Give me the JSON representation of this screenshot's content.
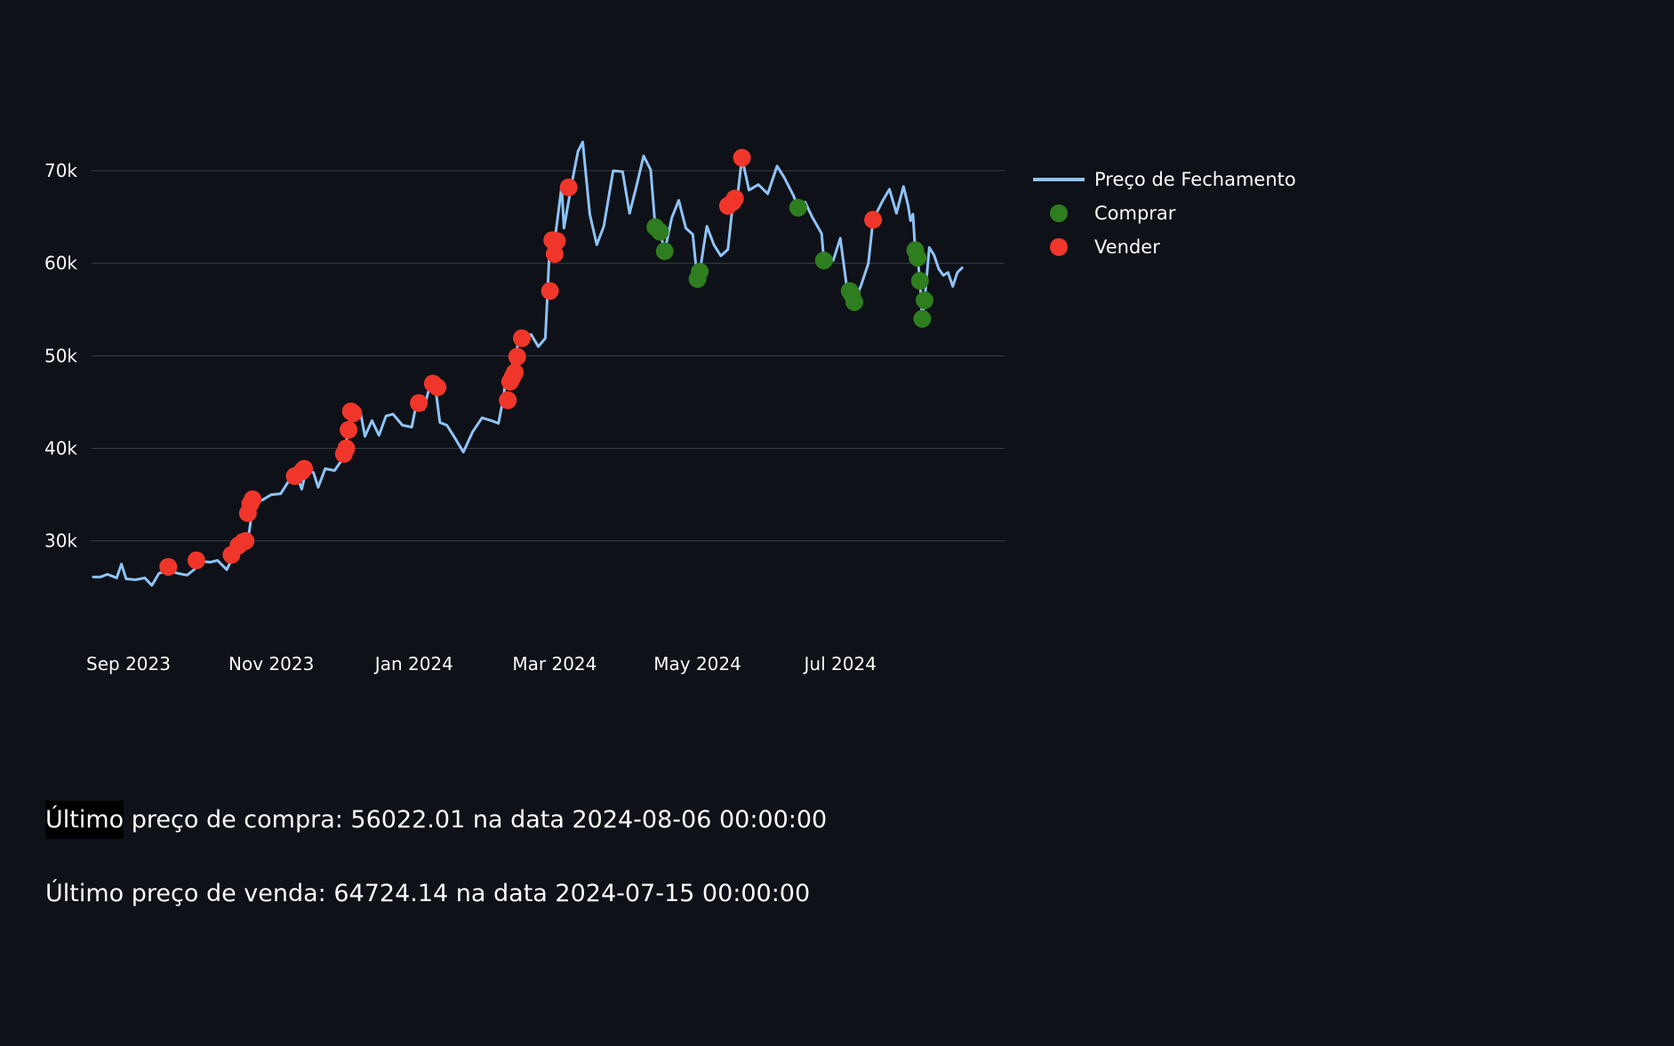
{
  "chart_data": {
    "type": "line",
    "x_axis": {
      "tick_labels": [
        "Sep 2023",
        "Nov 2023",
        "Jan 2024",
        "Mar 2024",
        "May 2024",
        "Jul 2024"
      ],
      "tick_dates": [
        "2023-09-01",
        "2023-11-01",
        "2024-01-01",
        "2024-03-01",
        "2024-05-01",
        "2024-07-01"
      ],
      "range": [
        "2023-08-17",
        "2024-08-28"
      ]
    },
    "y_axis": {
      "tick_labels": [
        "30k",
        "40k",
        "50k",
        "60k",
        "70k"
      ],
      "tick_values": [
        30000,
        40000,
        50000,
        60000,
        70000
      ],
      "range": [
        22000,
        75000
      ]
    },
    "grid": "horizontal",
    "legend_position": "top-right, outside plot",
    "series": [
      {
        "name": "Preço de Fechamento",
        "type": "line",
        "color": "#8ec3f7",
        "points": [
          [
            "2023-08-17",
            26100
          ],
          [
            "2023-08-20",
            26100
          ],
          [
            "2023-08-23",
            26400
          ],
          [
            "2023-08-27",
            26000
          ],
          [
            "2023-08-29",
            27500
          ],
          [
            "2023-08-31",
            25900
          ],
          [
            "2023-09-04",
            25800
          ],
          [
            "2023-09-08",
            26000
          ],
          [
            "2023-09-11",
            25200
          ],
          [
            "2023-09-14",
            26500
          ],
          [
            "2023-09-18",
            26800
          ],
          [
            "2023-09-22",
            26500
          ],
          [
            "2023-09-26",
            26300
          ],
          [
            "2023-09-29",
            26900
          ],
          [
            "2023-10-02",
            27800
          ],
          [
            "2023-10-06",
            27700
          ],
          [
            "2023-10-09",
            27900
          ],
          [
            "2023-10-13",
            26900
          ],
          [
            "2023-10-16",
            28500
          ],
          [
            "2023-10-19",
            29800
          ],
          [
            "2023-10-22",
            30000
          ],
          [
            "2023-10-24",
            33500
          ],
          [
            "2023-10-25",
            34500
          ],
          [
            "2023-10-28",
            34400
          ],
          [
            "2023-11-01",
            35000
          ],
          [
            "2023-11-05",
            35100
          ],
          [
            "2023-11-09",
            36700
          ],
          [
            "2023-11-12",
            37000
          ],
          [
            "2023-11-14",
            35600
          ],
          [
            "2023-11-16",
            37800
          ],
          [
            "2023-11-19",
            37400
          ],
          [
            "2023-11-21",
            35800
          ],
          [
            "2023-11-24",
            37800
          ],
          [
            "2023-11-28",
            37600
          ],
          [
            "2023-12-01",
            38700
          ],
          [
            "2023-12-02",
            39600
          ],
          [
            "2023-12-04",
            41900
          ],
          [
            "2023-12-05",
            44100
          ],
          [
            "2023-12-07",
            43800
          ],
          [
            "2023-12-09",
            44000
          ],
          [
            "2023-12-11",
            41300
          ],
          [
            "2023-12-14",
            43000
          ],
          [
            "2023-12-17",
            41400
          ],
          [
            "2023-12-20",
            43500
          ],
          [
            "2023-12-23",
            43700
          ],
          [
            "2023-12-27",
            42500
          ],
          [
            "2023-12-31",
            42300
          ],
          [
            "2024-01-02",
            44900
          ],
          [
            "2024-01-05",
            44200
          ],
          [
            "2024-01-08",
            47000
          ],
          [
            "2024-01-10",
            46700
          ],
          [
            "2024-01-12",
            42800
          ],
          [
            "2024-01-15",
            42500
          ],
          [
            "2024-01-18",
            41300
          ],
          [
            "2024-01-22",
            39600
          ],
          [
            "2024-01-26",
            41800
          ],
          [
            "2024-01-30",
            43300
          ],
          [
            "2024-02-03",
            43000
          ],
          [
            "2024-02-06",
            42700
          ],
          [
            "2024-02-08",
            45300
          ],
          [
            "2024-02-09",
            47200
          ],
          [
            "2024-02-11",
            48300
          ],
          [
            "2024-02-13",
            49900
          ],
          [
            "2024-02-15",
            51900
          ],
          [
            "2024-02-20",
            52300
          ],
          [
            "2024-02-23",
            51000
          ],
          [
            "2024-02-26",
            51900
          ],
          [
            "2024-02-27",
            57000
          ],
          [
            "2024-02-28",
            62500
          ],
          [
            "2024-03-01",
            62400
          ],
          [
            "2024-03-04",
            68300
          ],
          [
            "2024-03-05",
            63800
          ],
          [
            "2024-03-08",
            68200
          ],
          [
            "2024-03-11",
            72100
          ],
          [
            "2024-03-13",
            73100
          ],
          [
            "2024-03-16",
            65300
          ],
          [
            "2024-03-19",
            62000
          ],
          [
            "2024-03-22",
            64000
          ],
          [
            "2024-03-26",
            70000
          ],
          [
            "2024-03-30",
            69900
          ],
          [
            "2024-04-02",
            65400
          ],
          [
            "2024-04-05",
            68400
          ],
          [
            "2024-04-08",
            71600
          ],
          [
            "2024-04-11",
            70100
          ],
          [
            "2024-04-13",
            63900
          ],
          [
            "2024-04-15",
            63400
          ],
          [
            "2024-04-17",
            61300
          ],
          [
            "2024-04-20",
            64900
          ],
          [
            "2024-04-23",
            66800
          ],
          [
            "2024-04-26",
            63800
          ],
          [
            "2024-04-29",
            63100
          ],
          [
            "2024-04-30",
            60600
          ],
          [
            "2024-05-01",
            58300
          ],
          [
            "2024-05-02",
            59100
          ],
          [
            "2024-05-05",
            64000
          ],
          [
            "2024-05-08",
            62000
          ],
          [
            "2024-05-11",
            60800
          ],
          [
            "2024-05-14",
            61500
          ],
          [
            "2024-05-16",
            66200
          ],
          [
            "2024-05-18",
            67000
          ],
          [
            "2024-05-20",
            71400
          ],
          [
            "2024-05-23",
            67900
          ],
          [
            "2024-05-27",
            68500
          ],
          [
            "2024-05-31",
            67500
          ],
          [
            "2024-06-04",
            70500
          ],
          [
            "2024-06-07",
            69300
          ],
          [
            "2024-06-11",
            67300
          ],
          [
            "2024-06-13",
            66000
          ],
          [
            "2024-06-16",
            66600
          ],
          [
            "2024-06-19",
            65000
          ],
          [
            "2024-06-23",
            63200
          ],
          [
            "2024-06-24",
            60300
          ],
          [
            "2024-06-28",
            60300
          ],
          [
            "2024-07-01",
            62700
          ],
          [
            "2024-07-04",
            57000
          ],
          [
            "2024-07-05",
            56600
          ],
          [
            "2024-07-07",
            55800
          ],
          [
            "2024-07-10",
            57700
          ],
          [
            "2024-07-13",
            60000
          ],
          [
            "2024-07-15",
            64700
          ],
          [
            "2024-07-19",
            66700
          ],
          [
            "2024-07-22",
            68000
          ],
          [
            "2024-07-25",
            65400
          ],
          [
            "2024-07-28",
            68300
          ],
          [
            "2024-07-30",
            66200
          ],
          [
            "2024-07-31",
            64600
          ],
          [
            "2024-08-01",
            65300
          ],
          [
            "2024-08-02",
            61400
          ],
          [
            "2024-08-03",
            60600
          ],
          [
            "2024-08-04",
            58100
          ],
          [
            "2024-08-05",
            54000
          ],
          [
            "2024-08-06",
            56000
          ],
          [
            "2024-08-08",
            61700
          ],
          [
            "2024-08-10",
            60900
          ],
          [
            "2024-08-12",
            59400
          ],
          [
            "2024-08-14",
            58700
          ],
          [
            "2024-08-16",
            59000
          ],
          [
            "2024-08-18",
            57500
          ],
          [
            "2024-08-20",
            59000
          ],
          [
            "2024-08-22",
            59500
          ]
        ]
      },
      {
        "name": "Comprar",
        "type": "scatter",
        "color": "#2e7d1f",
        "points": [
          [
            "2024-04-13",
            63900
          ],
          [
            "2024-04-15",
            63400
          ],
          [
            "2024-04-17",
            61300
          ],
          [
            "2024-05-01",
            58300
          ],
          [
            "2024-05-02",
            59100
          ],
          [
            "2024-06-13",
            66000
          ],
          [
            "2024-06-24",
            60300
          ],
          [
            "2024-07-05",
            57000
          ],
          [
            "2024-07-06",
            56600
          ],
          [
            "2024-07-07",
            55800
          ],
          [
            "2024-08-02",
            61400
          ],
          [
            "2024-08-03",
            60600
          ],
          [
            "2024-08-04",
            58100
          ],
          [
            "2024-08-05",
            54000
          ],
          [
            "2024-08-06",
            56000
          ]
        ]
      },
      {
        "name": "Vender",
        "type": "scatter",
        "color": "#f0362a",
        "points": [
          [
            "2023-09-18",
            27200
          ],
          [
            "2023-09-30",
            27900
          ],
          [
            "2023-10-15",
            28500
          ],
          [
            "2023-10-18",
            29500
          ],
          [
            "2023-10-20",
            29900
          ],
          [
            "2023-10-21",
            30000
          ],
          [
            "2023-10-22",
            33000
          ],
          [
            "2023-10-23",
            34000
          ],
          [
            "2023-10-24",
            34500
          ],
          [
            "2023-11-11",
            37000
          ],
          [
            "2023-11-14",
            37500
          ],
          [
            "2023-11-15",
            37800
          ],
          [
            "2023-12-02",
            39400
          ],
          [
            "2023-12-03",
            40000
          ],
          [
            "2023-12-04",
            42000
          ],
          [
            "2023-12-05",
            44000
          ],
          [
            "2023-12-06",
            43800
          ],
          [
            "2024-01-03",
            44900
          ],
          [
            "2024-01-09",
            47000
          ],
          [
            "2024-01-11",
            46600
          ],
          [
            "2024-02-10",
            45200
          ],
          [
            "2024-02-11",
            47200
          ],
          [
            "2024-02-12",
            47700
          ],
          [
            "2024-02-13",
            48200
          ],
          [
            "2024-02-14",
            49900
          ],
          [
            "2024-02-16",
            51900
          ],
          [
            "2024-02-28",
            57000
          ],
          [
            "2024-02-29",
            62500
          ],
          [
            "2024-03-01",
            61000
          ],
          [
            "2024-03-02",
            62400
          ],
          [
            "2024-03-07",
            68200
          ],
          [
            "2024-05-14",
            66200
          ],
          [
            "2024-05-16",
            66600
          ],
          [
            "2024-05-17",
            67000
          ],
          [
            "2024-05-20",
            71400
          ],
          [
            "2024-07-15",
            64700
          ]
        ]
      }
    ]
  },
  "info": {
    "buy_line": {
      "highlight": "Último",
      "rest": " preço de compra: 56022.01 na data 2024-08-06 00:00:00"
    },
    "sell_line": "Último preço de venda: 64724.14 na data 2024-07-15 00:00:00"
  }
}
